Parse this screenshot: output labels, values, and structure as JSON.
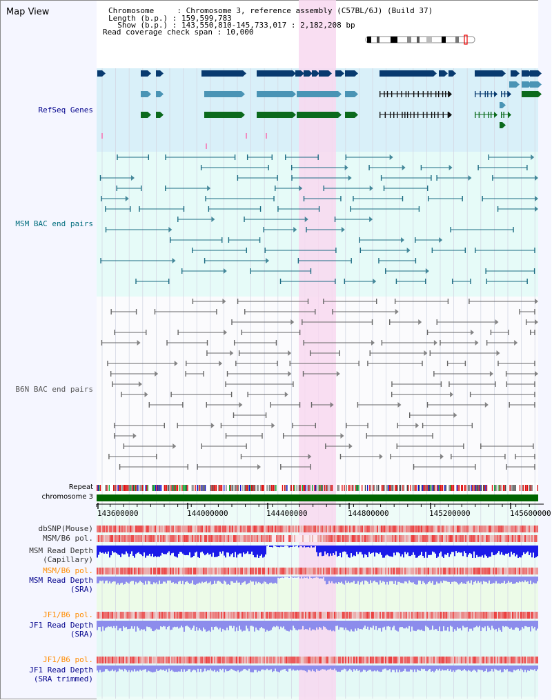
{
  "header": {
    "title": "Map View",
    "line1": "Chromosome     : Chromosome 3, reference assembly (C57BL/6J) (Build 37)",
    "line2": "Length (b.p.) : 159,599,783",
    "line3": "  Show (b.p.) : 143,550,810-145,733,017 : 2,182,208 bp",
    "line4": "Read coverage check span : 10,000"
  },
  "tracks": {
    "refseq": "RefSeq Genes",
    "msm_bac": "MSM BAC end pairs",
    "b6n_bac": "B6N BAC end pairs",
    "repeat": "Repeat",
    "chromosome": "chromosome 3",
    "dbsnp": "dbSNP(Mouse)",
    "msm_b6_pol": "MSM/B6 pol.",
    "msm_read_cap_1": "MSM Read Depth",
    "msm_read_cap_2": "(Capillary)",
    "msm_b6_pol_2": "MSM/B6 pol.",
    "msm_read_sra_1": "MSM Read Depth",
    "msm_read_sra_2": "(SRA)",
    "jf1_b6_pol": "JF1/B6 pol.",
    "jf1_read_sra_1": "JF1 Read Depth",
    "jf1_read_sra_2": "(SRA)",
    "jf1_b6_pol_2": "JF1/B6 pol.",
    "jf1_read_trim_1": "JF1 Read Depth",
    "jf1_read_trim_2": "(SRA trimmed)"
  },
  "axis": {
    "ticks": [
      "143600000",
      "144000000",
      "144400000",
      "144800000",
      "145200000",
      "145600000"
    ]
  },
  "colors": {
    "refseq_bg": "#d9f0f9",
    "msm_bac_bg": "#e6fbf8",
    "highlight": "#f8d8f0",
    "gene_dark": "#083a6f",
    "gene_mid": "#4a94b5",
    "gene_green": "#0b6a1c",
    "bac_teal": "#1b6b82",
    "bac_gray": "#666666",
    "chrom_green": "#006400",
    "depth_blue": "#1a1ae8",
    "depth_lavender": "#8c8cec",
    "pol_red": "#e83a3a",
    "label_blue": "#00008b",
    "label_orange": "#ff8c00",
    "label_teal": "#006d7d"
  }
}
